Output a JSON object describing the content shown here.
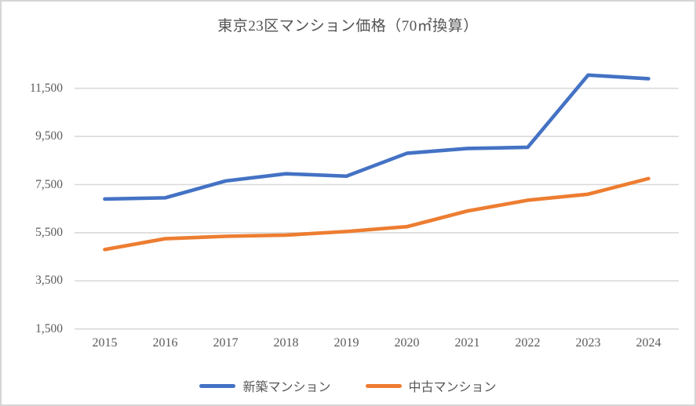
{
  "chart_data": {
    "type": "line",
    "title": "東京23区マンション価格（70㎡換算）",
    "x": [
      "2015",
      "2016",
      "2017",
      "2018",
      "2019",
      "2020",
      "2021",
      "2022",
      "2023",
      "2024"
    ],
    "series": [
      {
        "name": "新築マンション",
        "color": "#4472C4",
        "values": [
          6900,
          6950,
          7650,
          7950,
          7850,
          8800,
          9000,
          9050,
          12050,
          11900
        ]
      },
      {
        "name": "中古マンション",
        "color": "#ED7D31",
        "values": [
          4800,
          5250,
          5350,
          5400,
          5550,
          5750,
          6400,
          6850,
          7100,
          7750
        ]
      }
    ],
    "ylim": [
      1500,
      11500
    ],
    "yticks": [
      1500,
      3500,
      5500,
      7500,
      9500,
      11500
    ],
    "ytick_labels": [
      "1,500",
      "3,500",
      "5,500",
      "7,500",
      "9,500",
      "11,500"
    ],
    "grid": "horizontal",
    "gridline_color": "#D9D9D9",
    "legend_position": "bottom"
  }
}
